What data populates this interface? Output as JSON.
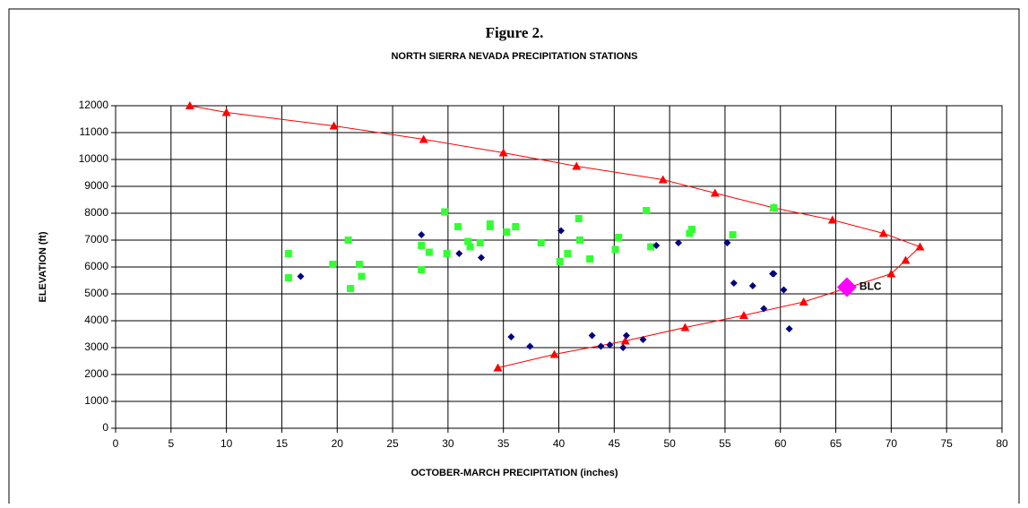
{
  "chart_data": {
    "type": "scatter",
    "title": "Figure 2.",
    "subtitle": "NORTH SIERRA NEVADA PRECIPITATION STATIONS",
    "x_label": "OCTOBER-MARCH PRECIPITATION (inches)",
    "y_label": "ELEVATION (ft)",
    "xlim": [
      0,
      80
    ],
    "ylim": [
      0,
      12000
    ],
    "xticks": [
      0,
      5,
      10,
      15,
      20,
      25,
      30,
      35,
      40,
      45,
      50,
      55,
      60,
      65,
      70,
      75,
      80
    ],
    "yticks": [
      0,
      1000,
      2000,
      3000,
      4000,
      5000,
      6000,
      7000,
      8000,
      9000,
      10000,
      11000,
      12000
    ],
    "grid": true,
    "series": [
      {
        "color": "#ff0000",
        "marker": "triangle",
        "line": true,
        "x": [
          6.7,
          10,
          19.7,
          27.8,
          35,
          41.6,
          49.4,
          54.1,
          59.4,
          64.7,
          69.3,
          72.6,
          71.3,
          70,
          62.1,
          56.7,
          51.4,
          46,
          39.6,
          34.5
        ],
        "values": [
          12000,
          11750,
          11250,
          10750,
          10250,
          9750,
          9250,
          8750,
          8200,
          7750,
          7250,
          6750,
          6250,
          5750,
          4700,
          4200,
          3750,
          3250,
          2750,
          2250
        ]
      },
      {
        "color": "#33ff33",
        "marker": "square",
        "line": false,
        "x": [
          15.6,
          15.6,
          19.6,
          21,
          21.2,
          22,
          22.2,
          27.6,
          27.6,
          28.3,
          29.7,
          29.9,
          30.9,
          31.8,
          32,
          32.9,
          33.8,
          33.8,
          35.3,
          36.1,
          38.4,
          40.1,
          40.8,
          41.8,
          41.9,
          42.8,
          45.1,
          45.4,
          47.9,
          48.3,
          51.8,
          52,
          55.7,
          59.4
        ],
        "values": [
          6500,
          5600,
          6100,
          7000,
          5200,
          6100,
          5650,
          6800,
          5900,
          6550,
          8050,
          6500,
          7500,
          6950,
          6750,
          6900,
          7500,
          7600,
          7300,
          7500,
          6900,
          6200,
          6500,
          7800,
          7000,
          6300,
          6650,
          7100,
          8100,
          6750,
          7250,
          7400,
          7200,
          8200
        ]
      },
      {
        "color": "#000080",
        "marker": "diamond",
        "line": false,
        "x": [
          16.7,
          27.6,
          31,
          33,
          40.2,
          35.7,
          37.4,
          43,
          43.8,
          44.6,
          45.8,
          46.1,
          47.6,
          48.8,
          50.8,
          55.2,
          55.8,
          57.5,
          58.5,
          59.3,
          59.4,
          60.3,
          60.8
        ],
        "values": [
          5650,
          7200,
          6500,
          6350,
          7350,
          3400,
          3050,
          3450,
          3050,
          3100,
          3000,
          3450,
          3300,
          6800,
          6900,
          6900,
          5400,
          5300,
          4450,
          5750,
          5750,
          5150,
          3700
        ]
      },
      {
        "color": "#ff00ff",
        "marker": "big-diamond",
        "line": false,
        "x": [
          66
        ],
        "values": [
          5250
        ],
        "point_labels": [
          "BLC"
        ]
      }
    ]
  }
}
